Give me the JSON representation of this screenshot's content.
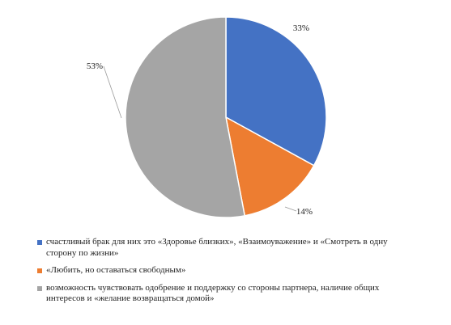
{
  "chart_data": {
    "type": "pie",
    "slices": [
      {
        "label": "счастливый брак для них это «Здоровье близких», «Взаимоуважение» и «Смотреть в одну сторону по жизни»",
        "value": 33,
        "value_label": "33%",
        "color": "#4472C4"
      },
      {
        "label": "«Любить, но оставаться свободным»",
        "value": 14,
        "value_label": "14%",
        "color": "#ED7D31"
      },
      {
        "label": "возможность чувствовать одобрение и поддержку со стороны партнера, наличие общих интересов и «желание возвращаться домой»",
        "value": 53,
        "value_label": "53%",
        "color": "#A5A5A5"
      }
    ],
    "start_angle": "12 o'clock",
    "direction": "clockwise",
    "legend_position": "bottom"
  }
}
